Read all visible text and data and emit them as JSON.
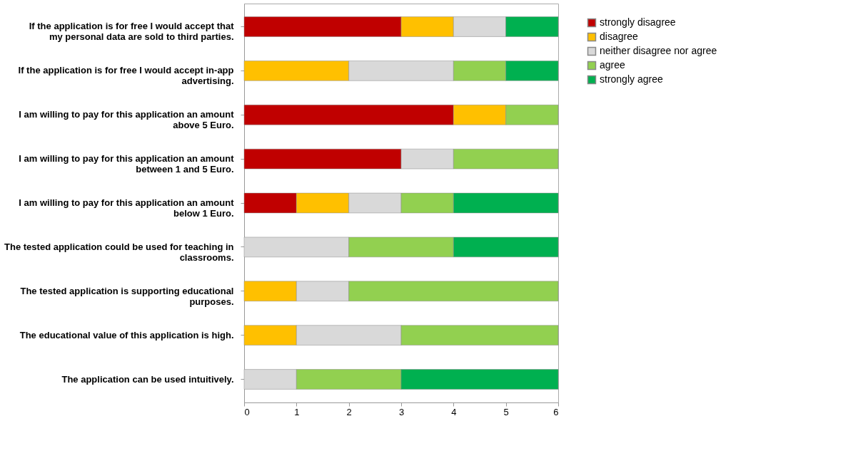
{
  "chart_data": {
    "type": "bar",
    "orientation": "horizontal",
    "stacked": true,
    "categories": [
      "If the application is for free I would accept that my personal data are sold to third parties.",
      "If the application is for free I would accept in-app advertising.",
      "I am willing to pay for this application an amount above 5 Euro.",
      "I am willing to pay for this application an amount between 1 and 5 Euro.",
      "I am willing to pay for this application an amount below 1 Euro.",
      "The tested application could be used for teaching in classrooms.",
      "The tested application is supporting educational purposes.",
      "The educational value of this application is high.",
      "The application can be used intuitively."
    ],
    "series": [
      {
        "name": "strongly disagree",
        "color": "#c00000",
        "values": [
          3,
          0,
          4,
          3,
          1,
          0,
          0,
          0,
          0
        ]
      },
      {
        "name": "disagree",
        "color": "#ffc000",
        "values": [
          1,
          2,
          1,
          0,
          1,
          0,
          1,
          1,
          0
        ]
      },
      {
        "name": "neither disagree nor agree",
        "color": "#d9d9d9",
        "values": [
          1,
          2,
          0,
          1,
          1,
          2,
          1,
          2,
          1
        ]
      },
      {
        "name": "agree",
        "color": "#92d050",
        "values": [
          0,
          1,
          1,
          2,
          1,
          2,
          4,
          3,
          2
        ]
      },
      {
        "name": "strongly agree",
        "color": "#00b050",
        "values": [
          1,
          1,
          0,
          0,
          2,
          2,
          0,
          0,
          3
        ]
      }
    ],
    "xlim": [
      0,
      6
    ],
    "xticks": [
      0,
      1,
      2,
      3,
      4,
      5,
      6
    ],
    "grid": false,
    "legend": "right"
  }
}
